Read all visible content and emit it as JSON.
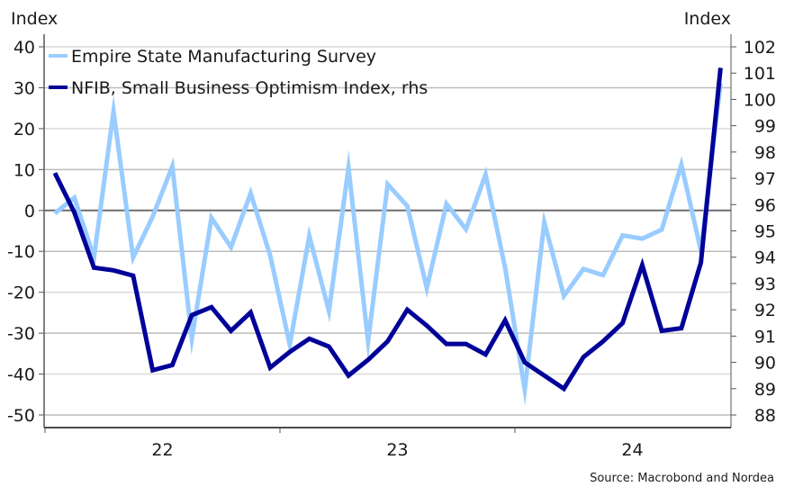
{
  "chart_data": {
    "type": "line",
    "title": "",
    "source": "Source: Macrobond and Nordea",
    "left_axis": {
      "title": "Index",
      "ylim": [
        -50,
        40
      ],
      "ticks": [
        40,
        30,
        20,
        10,
        0,
        -10,
        -20,
        -30,
        -40,
        -50
      ],
      "tick_labels": [
        "40",
        "30",
        "20",
        "10",
        "0",
        "-10",
        "-20",
        "-30",
        "-40",
        "-50"
      ]
    },
    "right_axis": {
      "title": "Index",
      "ylim": [
        88,
        102
      ],
      "ticks": [
        102,
        101,
        100,
        99,
        98,
        97,
        96,
        95,
        94,
        93,
        92,
        91,
        90,
        89,
        88
      ],
      "tick_labels": [
        "102",
        "101",
        "100",
        "99",
        "98",
        "97",
        "96",
        "95",
        "94",
        "93",
        "92",
        "91",
        "90",
        "89",
        "88"
      ]
    },
    "x_axis": {
      "label": "",
      "tick_labels": [
        "22",
        "23",
        "24"
      ],
      "period": "monthly",
      "start": "2022-01",
      "end": "2024-11"
    },
    "grid": true,
    "legend_position": "top-left",
    "x": [
      "2022-01",
      "2022-02",
      "2022-03",
      "2022-04",
      "2022-05",
      "2022-06",
      "2022-07",
      "2022-08",
      "2022-09",
      "2022-10",
      "2022-11",
      "2022-12",
      "2023-01",
      "2023-02",
      "2023-03",
      "2023-04",
      "2023-05",
      "2023-06",
      "2023-07",
      "2023-08",
      "2023-09",
      "2023-10",
      "2023-11",
      "2023-12",
      "2024-01",
      "2024-02",
      "2024-03",
      "2024-04",
      "2024-05",
      "2024-06",
      "2024-07",
      "2024-08",
      "2024-09",
      "2024-10",
      "2024-11"
    ],
    "series": [
      {
        "name": "Empire State Manufacturing Survey",
        "axis": "left",
        "color": "#99CCFF",
        "values": [
          -0.7,
          3.1,
          -11.5,
          24.2,
          -11.5,
          -1.5,
          10.8,
          -31.3,
          -1.8,
          -9.0,
          4.2,
          -11.0,
          -32.8,
          -6.2,
          -24.6,
          10.4,
          -32.0,
          6.4,
          1.1,
          -19.0,
          1.6,
          -4.6,
          8.8,
          -14.0,
          -43.8,
          -2.9,
          -20.9,
          -14.3,
          -15.8,
          -6.1,
          -6.9,
          -4.7,
          11.2,
          -9.9,
          31.1
        ]
      },
      {
        "name": "NFIB, Small Business Optimism Index, rhs",
        "axis": "right",
        "color": "#000099",
        "values": [
          97.2,
          95.7,
          93.6,
          93.5,
          93.3,
          89.7,
          89.9,
          91.8,
          92.1,
          91.2,
          91.9,
          89.8,
          90.4,
          90.9,
          90.6,
          89.5,
          90.1,
          90.8,
          92.0,
          91.4,
          90.7,
          90.7,
          90.3,
          91.6,
          90.0,
          89.5,
          89.0,
          90.2,
          90.8,
          91.5,
          93.7,
          91.2,
          91.3,
          93.8,
          101.2
        ]
      }
    ]
  }
}
